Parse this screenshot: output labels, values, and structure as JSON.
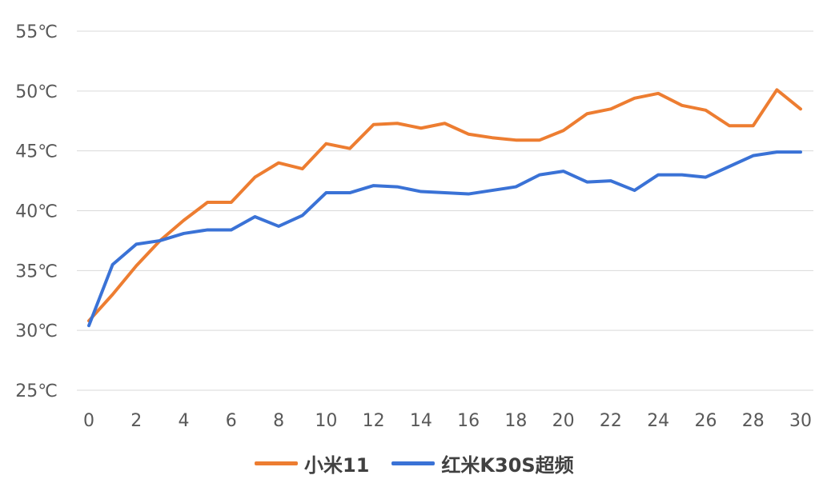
{
  "chart_data": {
    "type": "line",
    "x": [
      0,
      1,
      2,
      3,
      4,
      5,
      6,
      7,
      8,
      9,
      10,
      11,
      12,
      13,
      14,
      15,
      16,
      17,
      18,
      19,
      20,
      21,
      22,
      23,
      24,
      25,
      26,
      27,
      28,
      29,
      30
    ],
    "x_tick_labels": [
      "0",
      "2",
      "4",
      "6",
      "8",
      "10",
      "12",
      "14",
      "16",
      "18",
      "20",
      "22",
      "24",
      "26",
      "28",
      "30"
    ],
    "y_tick_labels": [
      "25℃",
      "30℃",
      "35℃",
      "40℃",
      "45℃",
      "50℃",
      "55℃"
    ],
    "ylim": [
      25,
      55
    ],
    "xlim": [
      0,
      30
    ],
    "grid": true,
    "legend_position": "bottom",
    "series": [
      {
        "name": "小米11",
        "color": "#ED7D31",
        "values": [
          30.8,
          33.0,
          35.4,
          37.5,
          39.2,
          40.7,
          40.7,
          42.8,
          44.0,
          43.5,
          45.6,
          45.2,
          47.2,
          47.3,
          46.9,
          47.3,
          46.4,
          46.1,
          45.9,
          45.9,
          46.7,
          48.1,
          48.5,
          49.4,
          49.8,
          48.8,
          48.4,
          47.1,
          47.1,
          50.1,
          48.5
        ]
      },
      {
        "name": "红米K30S超频",
        "color": "#3A72D6",
        "values": [
          30.4,
          35.5,
          37.2,
          37.5,
          38.1,
          38.4,
          38.4,
          39.5,
          38.7,
          39.6,
          41.5,
          41.5,
          42.1,
          42.0,
          41.6,
          41.5,
          41.4,
          41.7,
          42.0,
          43.0,
          43.3,
          42.4,
          42.5,
          41.7,
          43.0,
          43.0,
          42.8,
          43.7,
          44.6,
          44.9,
          44.9
        ]
      }
    ]
  }
}
